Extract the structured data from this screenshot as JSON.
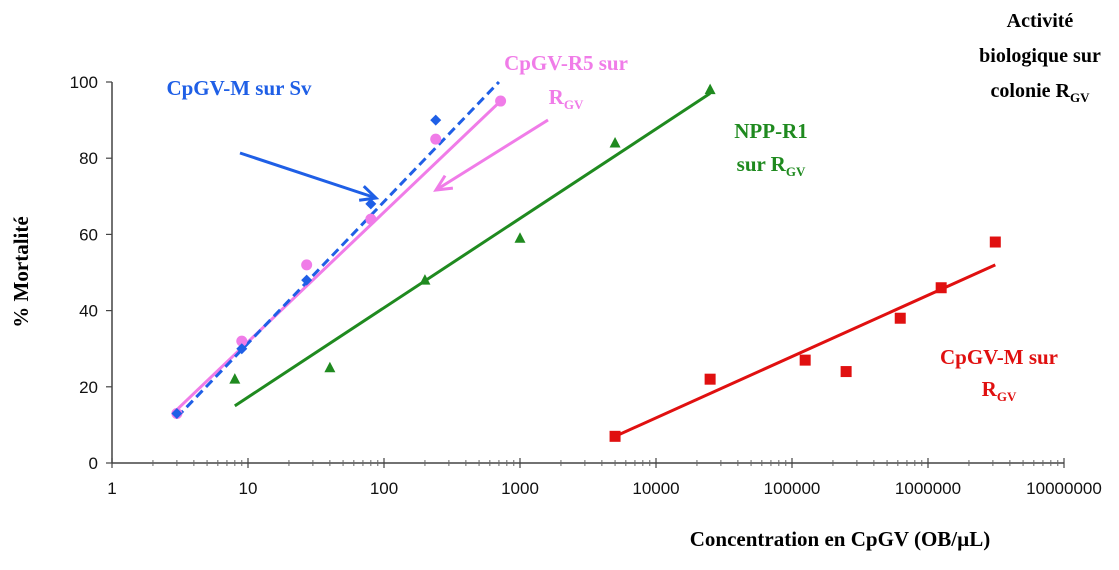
{
  "chart_data": {
    "type": "scatter",
    "xscale": "log",
    "xlim": [
      1,
      10000000
    ],
    "ylim": [
      0,
      100
    ],
    "xlabel": "Concentration en CpGV (OB/µL)",
    "ylabel": "% Mortalité",
    "grid": false,
    "x_ticks": [
      "1",
      "10",
      "100",
      "1000",
      "10000",
      "100000",
      "1000000",
      "10000000"
    ],
    "y_ticks": [
      "0",
      "20",
      "40",
      "60",
      "80",
      "100"
    ],
    "title_lines": [
      "Activité",
      "biologique sur",
      "colonie R",
      "GV"
    ],
    "series": [
      {
        "label": [
          "CpGV-M sur Sv"
        ],
        "color": "#1f5fe6",
        "marker": "diamond",
        "line_style": "dashed",
        "points": [
          [
            3,
            13
          ],
          [
            9,
            30
          ],
          [
            27,
            48
          ],
          [
            80,
            68
          ],
          [
            240,
            90
          ]
        ],
        "fit": [
          [
            3,
            12
          ],
          [
            700,
            100
          ]
        ]
      },
      {
        "label": [
          "CpGV-R5 sur",
          "R",
          "GV"
        ],
        "color": "#f07ce8",
        "marker": "circle",
        "line_style": "solid",
        "points": [
          [
            3,
            13
          ],
          [
            9,
            32
          ],
          [
            27,
            52
          ],
          [
            80,
            64
          ],
          [
            240,
            85
          ],
          [
            720,
            95
          ]
        ],
        "fit": [
          [
            3,
            14
          ],
          [
            720,
            95
          ]
        ]
      },
      {
        "label": [
          "NPP-R1",
          "sur R",
          "GV"
        ],
        "color": "#1f8a1f",
        "marker": "triangle",
        "line_style": "solid",
        "points": [
          [
            8,
            22
          ],
          [
            40,
            25
          ],
          [
            200,
            48
          ],
          [
            1000,
            59
          ],
          [
            5000,
            84
          ],
          [
            25000,
            98
          ]
        ],
        "fit": [
          [
            8,
            15
          ],
          [
            25000,
            97
          ]
        ]
      },
      {
        "label": [
          "CpGV-M sur",
          "R",
          "GV"
        ],
        "color": "#e01010",
        "marker": "square",
        "line_style": "solid",
        "points": [
          [
            5000,
            7
          ],
          [
            25000,
            22
          ],
          [
            125000,
            27
          ],
          [
            250000,
            24
          ],
          [
            625000,
            38
          ],
          [
            1250000,
            46
          ],
          [
            3125000,
            58
          ]
        ],
        "fit": [
          [
            5000,
            7
          ],
          [
            3125000,
            52
          ]
        ]
      }
    ]
  }
}
